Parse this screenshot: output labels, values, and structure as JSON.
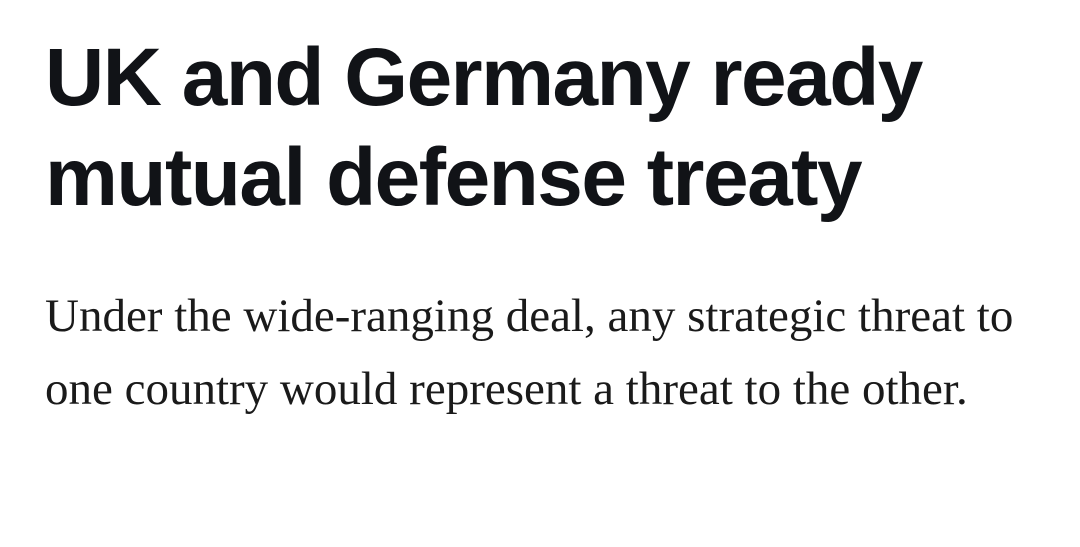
{
  "article": {
    "headline": "UK and Germany ready mutual defense treaty",
    "dek": "Under the wide-ranging deal, any strategic threat to one country would represent a threat to the other."
  }
}
